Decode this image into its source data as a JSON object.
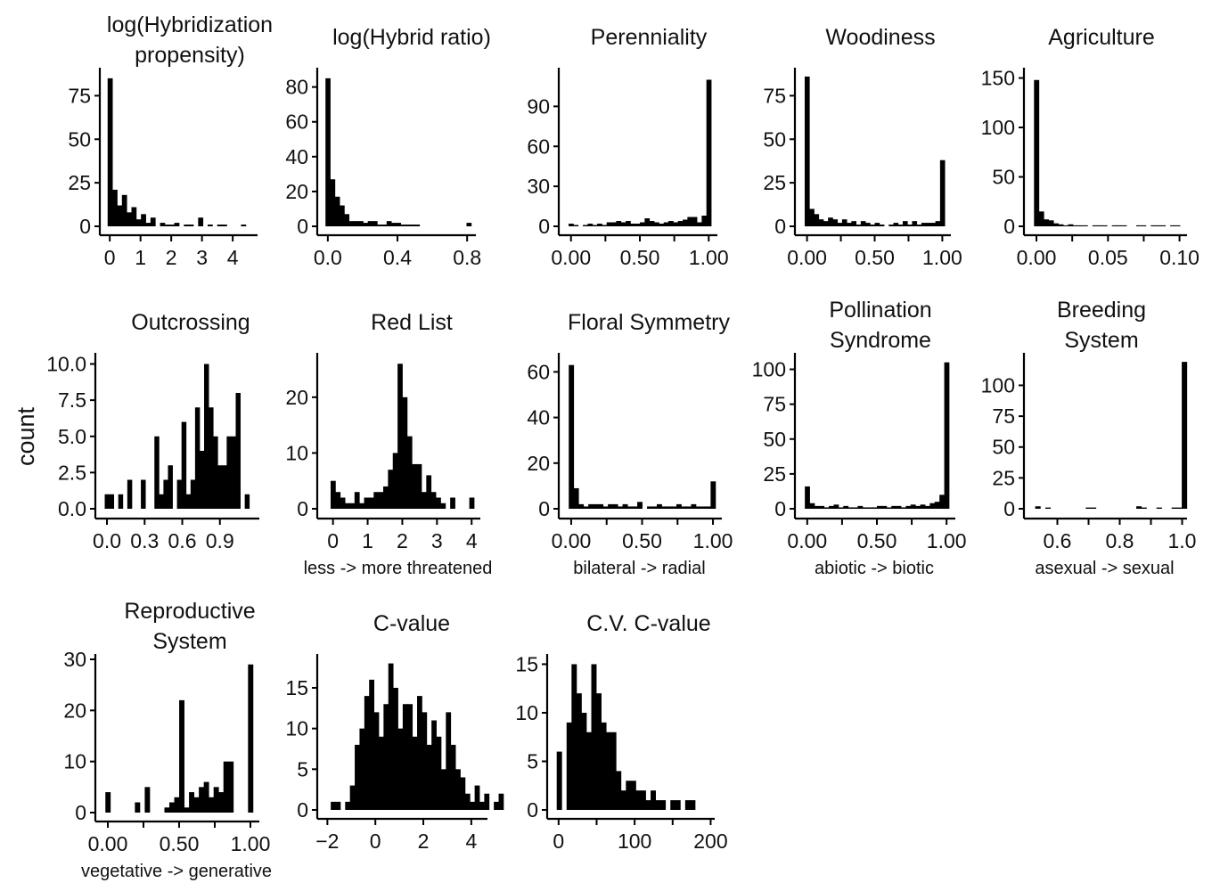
{
  "figure": {
    "ylabel": "count",
    "bar_color": "#000000"
  },
  "chart_data": [
    {
      "type": "bar",
      "title": "log(Hybridization propensity)",
      "title_lines": [
        "log(Hybridization",
        "propensity)"
      ],
      "xlabel": "",
      "ylabel": "count",
      "bin_start": -0.07,
      "bin_width": 0.155,
      "values": [
        85,
        21,
        12,
        18,
        8,
        11,
        4,
        7,
        2,
        5,
        0,
        2,
        1,
        1,
        2,
        0,
        1,
        1,
        0,
        5,
        0,
        1,
        0,
        1,
        1,
        0,
        0,
        0,
        1
      ],
      "xlim": [
        -0.15,
        4.75
      ],
      "ylim": [
        0,
        88
      ],
      "xticks": [
        0,
        1,
        2,
        3,
        4
      ],
      "xtick_labels": [
        "0",
        "1",
        "2",
        "3",
        "4"
      ],
      "yticks": [
        0,
        25,
        50,
        75
      ],
      "ytick_labels": [
        "0",
        "25",
        "50",
        "75"
      ],
      "grid": false
    },
    {
      "type": "bar",
      "title": "log(Hybrid ratio)",
      "title_lines": [
        "log(Hybrid ratio)"
      ],
      "xlabel": "",
      "ylabel": "count",
      "bin_start": -0.0135,
      "bin_width": 0.027,
      "values": [
        85,
        27,
        17,
        12,
        7,
        3,
        3,
        3,
        2,
        3,
        3,
        1,
        1,
        3,
        2,
        2,
        1,
        1,
        1,
        1,
        0,
        0,
        0,
        0,
        0,
        0,
        0,
        0,
        0,
        0,
        2
      ],
      "xlim": [
        -0.03,
        0.84
      ],
      "ylim": [
        0,
        88
      ],
      "xticks": [
        0,
        0.4,
        0.8
      ],
      "xtick_labels": [
        "0.0",
        "0.4",
        "0.8"
      ],
      "yticks": [
        0,
        20,
        40,
        60,
        80
      ],
      "ytick_labels": [
        "0",
        "20",
        "40",
        "60",
        "80"
      ],
      "grid": false
    },
    {
      "type": "bar",
      "title": "Perenniality",
      "title_lines": [
        "Perenniality"
      ],
      "xlabel": "",
      "ylabel": "count",
      "bin_start": -0.0172,
      "bin_width": 0.0345,
      "values": [
        2,
        1,
        0,
        1,
        2,
        1,
        2,
        1,
        3,
        3,
        4,
        3,
        4,
        2,
        2,
        3,
        6,
        4,
        3,
        2,
        3,
        4,
        3,
        4,
        5,
        7,
        7,
        3,
        8,
        110
      ],
      "xlim": [
        -0.05,
        1.05
      ],
      "ylim": [
        0,
        115
      ],
      "xticks": [
        0,
        0.25,
        0.5,
        0.75,
        1
      ],
      "xtick_labels": [
        "0.00",
        "",
        "0.50",
        "",
        "1.00"
      ],
      "yticks": [
        0,
        30,
        60,
        90
      ],
      "ytick_labels": [
        "0",
        "30",
        "60",
        "90"
      ],
      "grid": false
    },
    {
      "type": "bar",
      "title": "Woodiness",
      "title_lines": [
        "Woodiness"
      ],
      "xlabel": "",
      "ylabel": "count",
      "bin_start": -0.0172,
      "bin_width": 0.0345,
      "values": [
        86,
        10,
        7,
        4,
        3,
        5,
        4,
        2,
        4,
        2,
        3,
        1,
        3,
        2,
        1,
        2,
        1,
        0,
        1,
        2,
        1,
        3,
        1,
        3,
        1,
        2,
        2,
        2,
        3,
        38
      ],
      "xlim": [
        -0.05,
        1.05
      ],
      "ylim": [
        0,
        88
      ],
      "xticks": [
        0,
        0.25,
        0.5,
        0.75,
        1
      ],
      "xtick_labels": [
        "0.00",
        "",
        "0.50",
        "",
        "1.00"
      ],
      "yticks": [
        0,
        25,
        50,
        75
      ],
      "ytick_labels": [
        "0",
        "25",
        "50",
        "75"
      ],
      "grid": false
    },
    {
      "type": "bar",
      "title": "Agriculture",
      "title_lines": [
        "Agriculture"
      ],
      "xlabel": "",
      "ylabel": "count",
      "bin_start": -0.0017,
      "bin_width": 0.0034,
      "values": [
        148,
        15,
        7,
        6,
        3,
        2,
        1,
        2,
        1,
        1,
        1,
        0,
        1,
        1,
        1,
        0,
        1,
        1,
        1,
        0,
        0,
        1,
        1,
        0,
        1,
        1,
        1,
        0,
        1,
        1
      ],
      "xlim": [
        -0.005,
        0.104
      ],
      "ylim": [
        0,
        155
      ],
      "xticks": [
        0,
        0.025,
        0.05,
        0.075,
        0.1
      ],
      "xtick_labels": [
        "0.00",
        "",
        "0.05",
        "",
        "0.10"
      ],
      "yticks": [
        0,
        50,
        100,
        150
      ],
      "ytick_labels": [
        "0",
        "50",
        "100",
        "150"
      ],
      "grid": false
    },
    {
      "type": "bar",
      "title": "Outcrossing",
      "title_lines": [
        "Outcrossing"
      ],
      "xlabel": "",
      "ylabel": "count",
      "bin_start": -0.018,
      "bin_width": 0.036,
      "values": [
        1,
        1,
        0,
        1,
        0,
        2,
        0,
        0,
        2,
        0,
        0,
        5,
        1,
        2,
        3,
        0,
        2,
        6,
        1,
        2,
        7,
        4,
        10,
        7,
        5,
        3,
        3,
        5,
        5,
        8,
        0,
        1
      ],
      "xlim": [
        -0.05,
        1.2
      ],
      "ylim": [
        0,
        10.4
      ],
      "xticks": [
        0,
        0.3,
        0.6,
        0.9
      ],
      "xtick_labels": [
        "0.0",
        "0.3",
        "0.6",
        "0.9"
      ],
      "yticks": [
        0,
        2.5,
        5,
        7.5,
        10
      ],
      "ytick_labels": [
        "0.0",
        "2.5",
        "5.0",
        "7.5",
        "10.0"
      ],
      "grid": false
    },
    {
      "type": "bar",
      "title": "Red List",
      "title_lines": [
        "Red List"
      ],
      "xlabel": "less -> more threatened",
      "ylabel": "count",
      "bin_start": -0.069,
      "bin_width": 0.138,
      "values": [
        5,
        3,
        2,
        1,
        1,
        3,
        1,
        2,
        2,
        3,
        3,
        4,
        7,
        10,
        26,
        20,
        13,
        8,
        8,
        3,
        6,
        3,
        2,
        1,
        0,
        2,
        0,
        0,
        0,
        2
      ],
      "xlim": [
        -0.3,
        4.2
      ],
      "ylim": [
        0,
        27
      ],
      "xticks": [
        0,
        1,
        2,
        3,
        4
      ],
      "xtick_labels": [
        "0",
        "1",
        "2",
        "3",
        "4"
      ],
      "yticks": [
        0,
        10,
        20
      ],
      "ytick_labels": [
        "0",
        "10",
        "20"
      ],
      "grid": false
    },
    {
      "type": "bar",
      "title": "Floral Symmetry",
      "title_lines": [
        "Floral Symmetry"
      ],
      "xlabel": "bilateral -> radial",
      "ylabel": "count",
      "bin_start": -0.0172,
      "bin_width": 0.0345,
      "values": [
        63,
        9,
        2,
        1,
        2,
        2,
        2,
        1,
        2,
        2,
        1,
        2,
        1,
        1,
        3,
        0,
        1,
        1,
        2,
        1,
        1,
        1,
        2,
        1,
        1,
        2,
        1,
        1,
        1,
        12
      ],
      "xlim": [
        -0.05,
        1.05
      ],
      "ylim": [
        0,
        66
      ],
      "xticks": [
        0,
        0.25,
        0.5,
        0.75,
        1
      ],
      "xtick_labels": [
        "0.00",
        "",
        "0.50",
        "",
        "1.00"
      ],
      "yticks": [
        0,
        20,
        40,
        60
      ],
      "ytick_labels": [
        "0",
        "20",
        "40",
        "60"
      ],
      "grid": false
    },
    {
      "type": "bar",
      "title": "Pollination Syndrome",
      "title_lines": [
        "Pollination",
        "Syndrome"
      ],
      "xlabel": "abiotic -> biotic",
      "ylabel": "count",
      "bin_start": -0.0172,
      "bin_width": 0.0345,
      "values": [
        16,
        4,
        2,
        2,
        1,
        2,
        3,
        1,
        2,
        1,
        1,
        2,
        1,
        1,
        1,
        2,
        2,
        1,
        2,
        2,
        1,
        2,
        3,
        2,
        3,
        2,
        4,
        5,
        10,
        105
      ],
      "xlim": [
        -0.05,
        1.05
      ],
      "ylim": [
        0,
        108
      ],
      "xticks": [
        0,
        0.25,
        0.5,
        0.75,
        1
      ],
      "xtick_labels": [
        "0.00",
        "",
        "0.50",
        "",
        "1.00"
      ],
      "yticks": [
        0,
        25,
        50,
        75,
        100
      ],
      "ytick_labels": [
        "0",
        "25",
        "50",
        "75",
        "100"
      ],
      "grid": false
    },
    {
      "type": "bar",
      "title": "Breeding System",
      "title_lines": [
        "Breeding",
        "System"
      ],
      "xlabel": "asexual -> sexual",
      "ylabel": "count",
      "bin_start": 0.529,
      "bin_width": 0.0162,
      "values": [
        2,
        0,
        1,
        0,
        0,
        0,
        0,
        0,
        0,
        0,
        1,
        1,
        0,
        0,
        0,
        0,
        0,
        0,
        0,
        0,
        2,
        1,
        0,
        0,
        1,
        0,
        0,
        1,
        1,
        119
      ],
      "xlim": [
        0.51,
        1.01
      ],
      "ylim": [
        0,
        122
      ],
      "xticks": [
        0.6,
        0.7,
        0.8,
        0.9,
        1.0
      ],
      "xtick_labels": [
        "0.6",
        "",
        "0.8",
        "",
        "1.0"
      ],
      "yticks": [
        0,
        25,
        50,
        75,
        100
      ],
      "ytick_labels": [
        "0",
        "25",
        "50",
        "75",
        "100"
      ],
      "grid": false
    },
    {
      "type": "bar",
      "title": "Reproductive System",
      "title_lines": [
        "Reproductive",
        "System"
      ],
      "xlabel": "vegetative -> generative",
      "ylabel": "count",
      "bin_start": -0.0172,
      "bin_width": 0.0345,
      "values": [
        4,
        0,
        0,
        0,
        0,
        0,
        2,
        0,
        5,
        0,
        0,
        0,
        1,
        2,
        3,
        22,
        1,
        4,
        3,
        5,
        6,
        3,
        5,
        4,
        10,
        10,
        0,
        0,
        0,
        29
      ],
      "xlim": [
        -0.05,
        1.05
      ],
      "ylim": [
        0,
        30
      ],
      "xticks": [
        0,
        0.25,
        0.5,
        0.75,
        1
      ],
      "xtick_labels": [
        "0.00",
        "",
        "0.50",
        "",
        "1.00"
      ],
      "yticks": [
        0,
        10,
        20,
        30
      ],
      "ytick_labels": [
        "0",
        "10",
        "20",
        "30"
      ],
      "grid": false
    },
    {
      "type": "bar",
      "title": "C-value",
      "title_lines": [
        "C-value"
      ],
      "xlabel": "",
      "ylabel": "count",
      "bin_start": -1.86,
      "bin_width": 0.2,
      "values": [
        1,
        1,
        0,
        1,
        3,
        8,
        10,
        14,
        16,
        12,
        9,
        13,
        18,
        15,
        10,
        13,
        13,
        9,
        14,
        12,
        8,
        11,
        9,
        5,
        12,
        8,
        5,
        4,
        2,
        1,
        3,
        1,
        2,
        0,
        1,
        2
      ],
      "xlim": [
        -2.2,
        4.6
      ],
      "ylim": [
        0,
        18.5
      ],
      "xticks": [
        -2,
        0,
        2,
        4
      ],
      "xtick_labels": [
        "−2",
        "0",
        "2",
        "4"
      ],
      "yticks": [
        0,
        5,
        10,
        15
      ],
      "ytick_labels": [
        "0",
        "5",
        "10",
        "15"
      ],
      "grid": false
    },
    {
      "type": "bar",
      "title": "C.V. C-value",
      "title_lines": [
        "C.V. C-value"
      ],
      "xlabel": "",
      "ylabel": "count",
      "bin_start": -2.5,
      "bin_width": 6.5,
      "values": [
        6,
        0,
        9,
        15,
        12,
        10,
        8,
        15,
        12,
        9,
        8,
        8,
        4,
        2,
        3,
        3,
        2,
        2,
        1,
        2,
        1,
        1,
        0,
        1,
        1,
        0,
        1,
        1
      ],
      "xlim": [
        -8,
        203
      ],
      "ylim": [
        0,
        15.5
      ],
      "xticks": [
        0,
        50,
        100,
        150,
        200
      ],
      "xtick_labels": [
        "0",
        "",
        "100",
        "",
        "200"
      ],
      "yticks": [
        0,
        5,
        10,
        15
      ],
      "ytick_labels": [
        "0",
        "5",
        "10",
        "15"
      ],
      "grid": false
    }
  ]
}
